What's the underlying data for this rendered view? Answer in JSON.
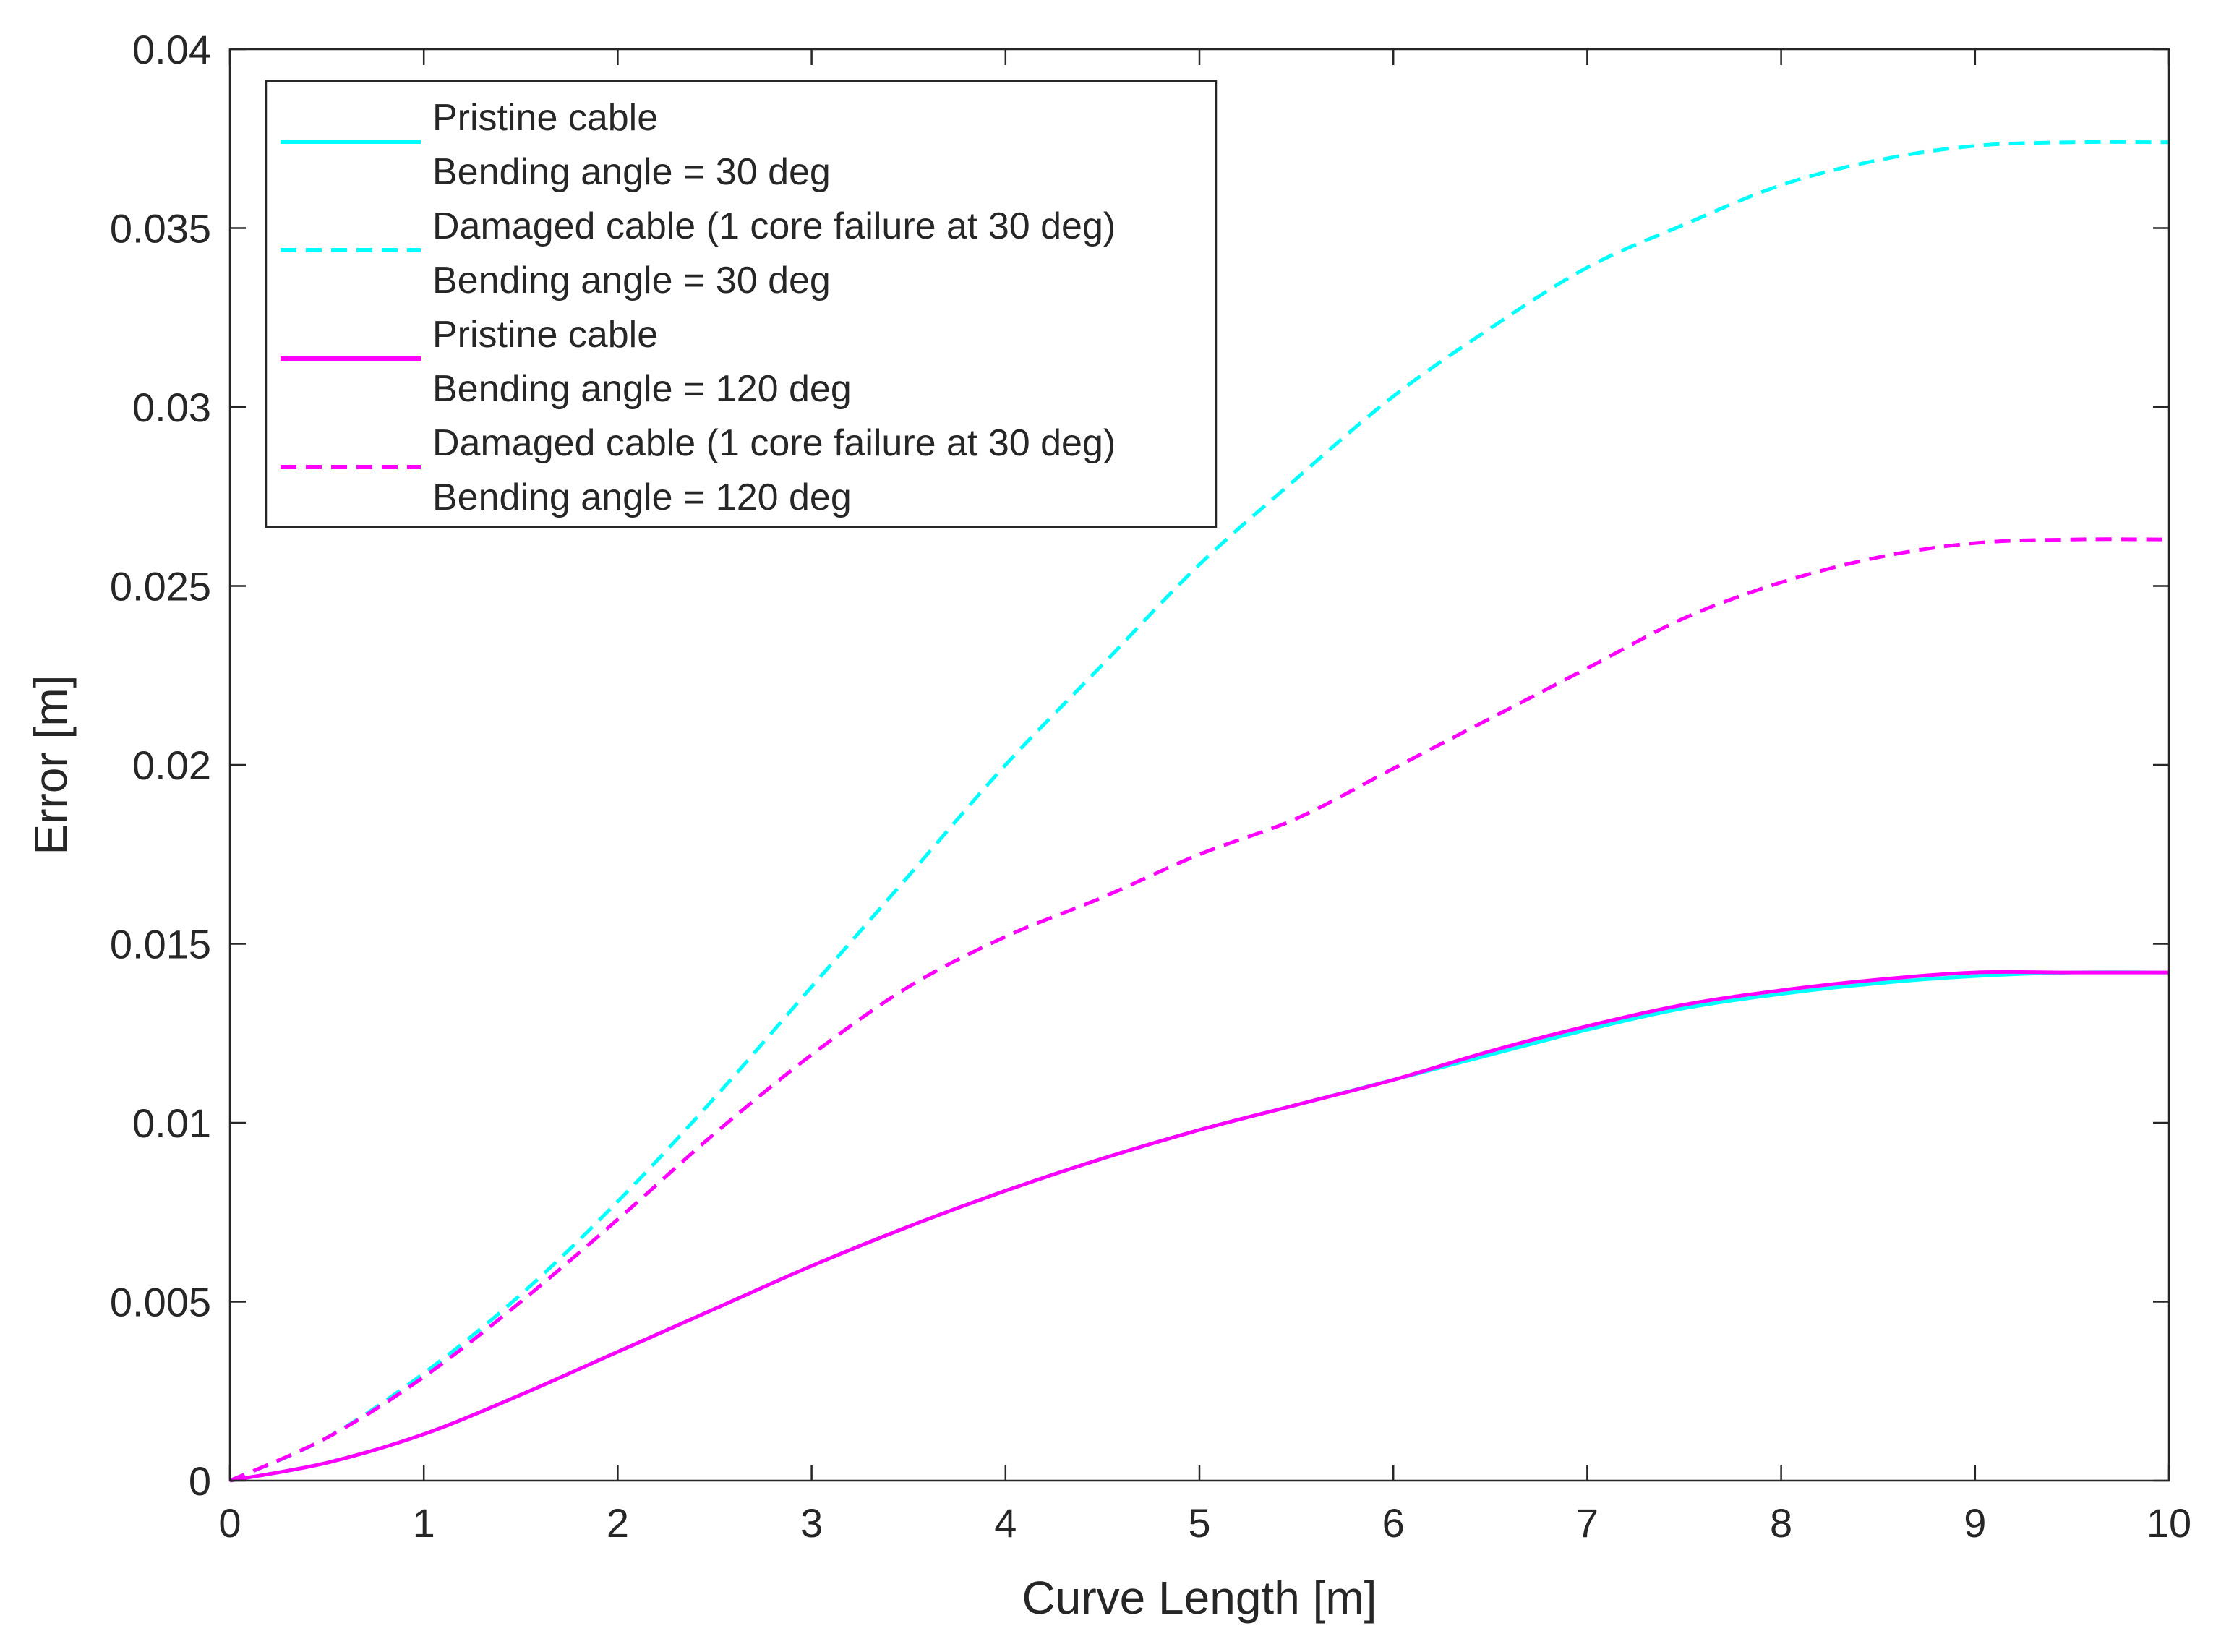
{
  "chart_data": {
    "type": "line",
    "title": "",
    "xlabel": "Curve Length [m]",
    "ylabel": "Error [m]",
    "xlim": [
      0,
      10
    ],
    "ylim": [
      0,
      0.04
    ],
    "xticks": [
      0,
      1,
      2,
      3,
      4,
      5,
      6,
      7,
      8,
      9,
      10
    ],
    "xtick_labels": [
      "0",
      "1",
      "2",
      "3",
      "4",
      "5",
      "6",
      "7",
      "8",
      "9",
      "10"
    ],
    "yticks": [
      0,
      0.005,
      0.01,
      0.015,
      0.02,
      0.025,
      0.03,
      0.035,
      0.04
    ],
    "ytick_labels": [
      "0",
      "0.005",
      "0.01",
      "0.015",
      "0.02",
      "0.025",
      "0.03",
      "0.035",
      "0.04"
    ],
    "grid": false,
    "legend_position": "top-left",
    "series": [
      {
        "name": "Pristine cable",
        "legend_line2": "Bending angle = 30 deg",
        "color": "#00FFFF",
        "dash": "solid",
        "x": [
          0,
          0.5,
          1,
          1.5,
          2,
          2.5,
          3,
          3.5,
          4,
          4.5,
          5,
          5.5,
          6,
          6.5,
          7,
          7.5,
          8,
          8.5,
          9,
          9.5,
          10
        ],
        "y": [
          0,
          0.0005,
          0.0013,
          0.0024,
          0.0036,
          0.0048,
          0.006,
          0.0071,
          0.0081,
          0.009,
          0.0098,
          0.0105,
          0.0112,
          0.0119,
          0.0126,
          0.0132,
          0.0136,
          0.0139,
          0.0141,
          0.0142,
          0.0142
        ]
      },
      {
        "name": "Damaged cable (1 core failure at 30 deg)",
        "legend_line2": "Bending angle = 30 deg",
        "color": "#00FFFF",
        "dash": "dashed",
        "x": [
          0,
          0.5,
          1,
          1.5,
          2,
          2.5,
          3,
          3.5,
          4,
          4.5,
          5,
          5.5,
          6,
          6.5,
          7,
          7.5,
          8,
          8.5,
          9,
          9.5,
          10
        ],
        "y": [
          0,
          0.0012,
          0.003,
          0.0052,
          0.0078,
          0.0107,
          0.0138,
          0.0169,
          0.02,
          0.0228,
          0.0256,
          0.028,
          0.0303,
          0.0322,
          0.0339,
          0.0351,
          0.0362,
          0.0369,
          0.0373,
          0.0374,
          0.0374
        ]
      },
      {
        "name": "Pristine cable",
        "legend_line2": "Bending angle = 120 deg",
        "color": "#FF00FF",
        "dash": "solid",
        "x": [
          0,
          0.5,
          1,
          1.5,
          2,
          2.5,
          3,
          3.5,
          4,
          4.5,
          5,
          5.5,
          6,
          6.5,
          7,
          7.5,
          8,
          8.5,
          9,
          9.5,
          10
        ],
        "y": [
          0,
          0.0005,
          0.0013,
          0.0024,
          0.0036,
          0.0048,
          0.006,
          0.0071,
          0.0081,
          0.009,
          0.0098,
          0.0105,
          0.0112,
          0.012,
          0.0127,
          0.0133,
          0.0137,
          0.014,
          0.0142,
          0.0142,
          0.0142
        ]
      },
      {
        "name": "Damaged cable (1 core failure at 30 deg)",
        "legend_line2": "Bending angle = 120 deg",
        "color": "#FF00FF",
        "dash": "dashed",
        "x": [
          0,
          0.5,
          1,
          1.5,
          2,
          2.5,
          3,
          3.5,
          4,
          4.5,
          5,
          5.5,
          6,
          6.5,
          7,
          7.5,
          8,
          8.5,
          9,
          9.5,
          10
        ],
        "y": [
          0,
          0.0012,
          0.0029,
          0.005,
          0.0073,
          0.0097,
          0.0119,
          0.0138,
          0.0152,
          0.0163,
          0.0175,
          0.0185,
          0.0199,
          0.0213,
          0.0227,
          0.0241,
          0.0251,
          0.0258,
          0.0262,
          0.0263,
          0.0263
        ]
      }
    ]
  }
}
